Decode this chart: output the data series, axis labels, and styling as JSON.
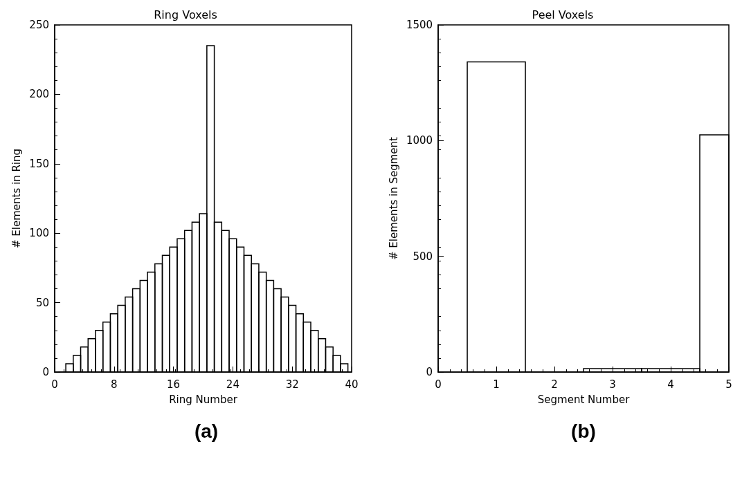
{
  "chart_data": [
    {
      "type": "histogram",
      "title": "Ring Voxels",
      "xlabel": "Ring Number",
      "ylabel": "# Elements in Ring",
      "annotations": [
        "(a)"
      ],
      "bins": [
        0.5,
        1.5,
        2.5,
        3.5,
        4.5,
        5.5,
        6.5,
        7.5,
        8.5,
        9.5,
        10.5,
        11.5,
        12.5,
        13.5,
        14.5,
        15.5,
        16.5,
        17.5,
        18.5,
        19.5,
        20.5,
        21.5,
        22.5,
        23.5,
        24.5,
        25.5,
        26.5,
        27.5,
        28.5,
        29.5,
        30.5,
        31.5,
        32.5,
        33.5,
        34.5,
        35.5,
        36.5,
        37.5,
        38.5,
        39.5
      ],
      "values": [
        0,
        6,
        12,
        18,
        24,
        30,
        36,
        42,
        48,
        54,
        60,
        66,
        72,
        78,
        84,
        90,
        96,
        102,
        108,
        114,
        235,
        108,
        102,
        96,
        90,
        84,
        78,
        72,
        66,
        60,
        54,
        48,
        42,
        36,
        30,
        24,
        18,
        12,
        6
      ],
      "color": "#000000",
      "xlim": [
        0,
        40
      ],
      "xticks": [
        0,
        8,
        16,
        24,
        32,
        40
      ],
      "ylim": [
        0,
        250
      ],
      "yticks": [
        0,
        50,
        100,
        150,
        200,
        250
      ],
      "grid": false
    },
    {
      "type": "histogram",
      "title": "Peel Voxels",
      "xlabel": "Segment Number",
      "ylabel": "# Elements in Segment",
      "annotations": [
        "(b)"
      ],
      "bins": [
        0.5,
        1.5,
        2.5,
        3.5,
        4.5,
        5
      ],
      "values": [
        1340,
        0,
        15,
        15,
        1025
      ],
      "color": "#000000",
      "xlim": [
        0,
        5
      ],
      "xticks": [
        0,
        1,
        2,
        3,
        4,
        5
      ],
      "ylim": [
        0,
        1500
      ],
      "yticks": [
        0,
        500,
        1000,
        1500
      ],
      "grid": false
    }
  ]
}
